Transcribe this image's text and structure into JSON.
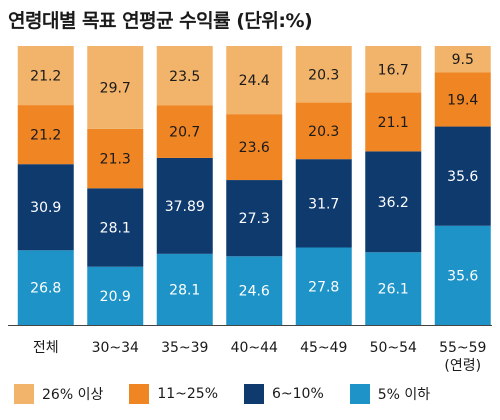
{
  "chart_data": {
    "type": "bar",
    "stacked": true,
    "normalized": true,
    "title": "연령대별 목표 연평균 수익률 (단위:%)",
    "categories": [
      [
        "전체"
      ],
      [
        "30~34"
      ],
      [
        "35~39"
      ],
      [
        "40~44"
      ],
      [
        "45~49"
      ],
      [
        "50~54"
      ],
      [
        "55~59",
        "(연령)"
      ]
    ],
    "series": [
      {
        "name": "5% 이하",
        "color": "#1d93c7",
        "values": [
          26.8,
          20.9,
          28.1,
          24.6,
          27.8,
          26.1,
          35.6
        ]
      },
      {
        "name": "6~10%",
        "color": "#0f3a6e",
        "values": [
          30.9,
          28.1,
          37.89,
          27.3,
          31.7,
          36.2,
          35.6
        ]
      },
      {
        "name": "11~25%",
        "color": "#f08524",
        "values": [
          21.2,
          21.3,
          20.7,
          23.6,
          20.3,
          21.1,
          19.4
        ]
      },
      {
        "name": "26% 이상",
        "color": "#f2b46b",
        "values": [
          21.2,
          29.7,
          23.5,
          24.4,
          20.3,
          16.7,
          9.5
        ]
      }
    ],
    "legend_order": [
      "26% 이상",
      "11~25%",
      "6~10%",
      "5% 이하"
    ],
    "legend_placement": "bottom",
    "grid": false,
    "light_label_series": [
      "5% 이하",
      "6~10%"
    ]
  }
}
